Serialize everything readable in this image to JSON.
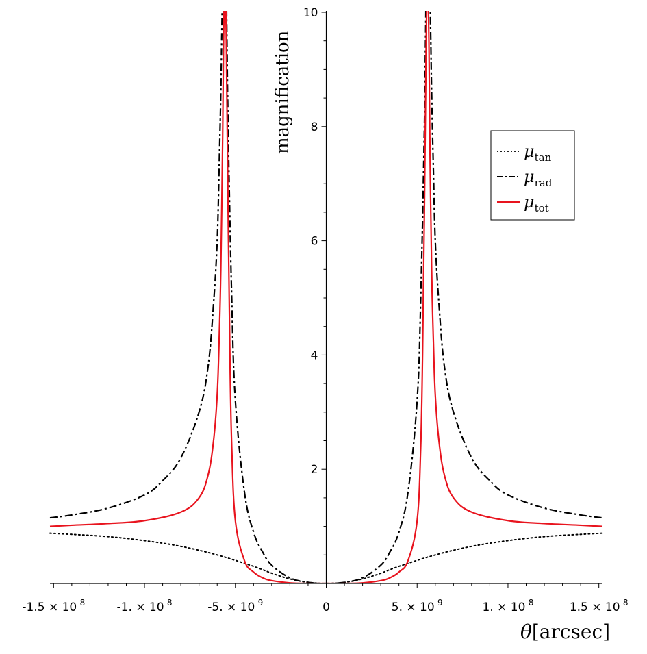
{
  "chart_data": {
    "type": "line",
    "xlabel": {
      "symbol": "θ",
      "unit": "[arcsec]"
    },
    "ylabel": "magnification",
    "xlim": [
      -1.52e-08,
      1.52e-08
    ],
    "ylim": [
      0,
      10
    ],
    "axes_origin": [
      0,
      0
    ],
    "grid": false,
    "legend_position": "right",
    "x_ticks": [
      {
        "value": -1.5e-08,
        "mantissa": "-1.5",
        "times": " × ",
        "base": "10",
        "exp": "-8"
      },
      {
        "value": -1e-08,
        "mantissa": "-1.",
        "times": " × ",
        "base": "10",
        "exp": "-8"
      },
      {
        "value": -5e-09,
        "mantissa": "-5.",
        "times": " × ",
        "base": "10",
        "exp": "-9"
      },
      {
        "value": 0,
        "mantissa": "0",
        "times": "",
        "base": "",
        "exp": ""
      },
      {
        "value": 5e-09,
        "mantissa": "5.",
        "times": " × ",
        "base": "10",
        "exp": "-9"
      },
      {
        "value": 1e-08,
        "mantissa": "1.",
        "times": " × ",
        "base": "10",
        "exp": "-8"
      },
      {
        "value": 1.5e-08,
        "mantissa": "1.5",
        "times": " × ",
        "base": "10",
        "exp": "-8"
      }
    ],
    "y_ticks": [
      {
        "value": 2,
        "label": "2"
      },
      {
        "value": 4,
        "label": "4"
      },
      {
        "value": 6,
        "label": "6"
      },
      {
        "value": 8,
        "label": "8"
      },
      {
        "value": 10,
        "label": "10"
      }
    ],
    "series": [
      {
        "key": "tan",
        "symbol": "μ",
        "subscript": "tan",
        "color": "#000000",
        "style": "dotted",
        "x": [
          -1.52e-08,
          -1.4e-08,
          -1.2e-08,
          -1e-08,
          -8e-09,
          -6e-09,
          -4e-09,
          -3e-09,
          -2e-09,
          -1e-09,
          0,
          1e-09,
          2e-09,
          3e-09,
          4e-09,
          6e-09,
          8e-09,
          1e-08,
          1.2e-08,
          1.4e-08,
          1.52e-08
        ],
        "y": [
          0.88,
          0.86,
          0.82,
          0.75,
          0.65,
          0.5,
          0.3,
          0.18,
          0.08,
          0.02,
          0,
          0.02,
          0.08,
          0.18,
          0.3,
          0.5,
          0.65,
          0.75,
          0.82,
          0.86,
          0.88
        ]
      },
      {
        "key": "rad",
        "symbol": "μ",
        "subscript": "rad",
        "color": "#000000",
        "style": "dashdot",
        "x": [
          -1.52e-08,
          -1.4e-08,
          -1.2e-08,
          -1e-08,
          -9e-09,
          -8e-09,
          -7e-09,
          -6.5e-09,
          -6.2e-09,
          -6e-09,
          -5.9e-09,
          -5.8e-09,
          -5.75e-09,
          -5.7e-09,
          -5.65e-09,
          -5.6e-09,
          -5.55e-09,
          -5.5e-09,
          -5.4e-09,
          -5.2e-09,
          -5e-09,
          -4.5e-09,
          -4e-09,
          -3.5e-09,
          -3e-09,
          -2e-09,
          -1e-09,
          0,
          1e-09,
          2e-09,
          3e-09,
          3.5e-09,
          4e-09,
          4.5e-09,
          5e-09,
          5.2e-09,
          5.4e-09,
          5.5e-09,
          5.55e-09,
          5.6e-09,
          5.65e-09,
          5.7e-09,
          5.75e-09,
          5.8e-09,
          5.9e-09,
          6e-09,
          6.2e-09,
          6.5e-09,
          7e-09,
          8e-09,
          9e-09,
          1e-08,
          1.2e-08,
          1.4e-08,
          1.52e-08
        ],
        "y": [
          1.15,
          1.2,
          1.32,
          1.55,
          1.8,
          2.2,
          3.0,
          3.8,
          4.9,
          6.0,
          7.2,
          8.6,
          9.6,
          10.4,
          10.6,
          10.6,
          10.6,
          10.4,
          8.0,
          5.0,
          3.2,
          1.6,
          0.9,
          0.55,
          0.32,
          0.1,
          0.02,
          0,
          0.02,
          0.1,
          0.32,
          0.55,
          0.9,
          1.6,
          3.2,
          5.0,
          8.0,
          10.4,
          10.6,
          10.6,
          10.6,
          10.4,
          9.6,
          8.6,
          7.2,
          6.0,
          4.9,
          3.8,
          3.0,
          2.2,
          1.8,
          1.55,
          1.32,
          1.2,
          1.15
        ]
      },
      {
        "key": "tot",
        "symbol": "μ",
        "subscript": "tot",
        "color": "#e8141e",
        "style": "solid",
        "x": [
          -1.52e-08,
          -1.4e-08,
          -1.2e-08,
          -1e-08,
          -8e-09,
          -7e-09,
          -6.5e-09,
          -6.2e-09,
          -6e-09,
          -5.9e-09,
          -5.8e-09,
          -5.7e-09,
          -5.65e-09,
          -5.6e-09,
          -5.55e-09,
          -5.5e-09,
          -5.4e-09,
          -5.3e-09,
          -5.2e-09,
          -5e-09,
          -4.5e-09,
          -4e-09,
          -3.5e-09,
          -3e-09,
          -2e-09,
          -1e-09,
          0,
          1e-09,
          2e-09,
          3e-09,
          3.5e-09,
          4e-09,
          4.5e-09,
          5e-09,
          5.2e-09,
          5.3e-09,
          5.4e-09,
          5.5e-09,
          5.55e-09,
          5.6e-09,
          5.65e-09,
          5.7e-09,
          5.8e-09,
          5.9e-09,
          6e-09,
          6.2e-09,
          6.5e-09,
          7e-09,
          8e-09,
          1e-08,
          1.2e-08,
          1.4e-08,
          1.52e-08
        ],
        "y": [
          1.0,
          1.02,
          1.05,
          1.1,
          1.25,
          1.5,
          1.9,
          2.5,
          3.3,
          4.2,
          5.5,
          7.8,
          9.5,
          10.6,
          10.6,
          9.5,
          6.5,
          4.0,
          2.4,
          1.1,
          0.4,
          0.2,
          0.1,
          0.05,
          0.01,
          0,
          0,
          0,
          0.01,
          0.05,
          0.1,
          0.2,
          0.4,
          1.1,
          2.4,
          4.0,
          6.5,
          9.5,
          10.6,
          10.6,
          9.5,
          7.8,
          5.5,
          4.2,
          3.3,
          2.5,
          1.9,
          1.5,
          1.25,
          1.1,
          1.05,
          1.02,
          1.0
        ]
      }
    ]
  }
}
